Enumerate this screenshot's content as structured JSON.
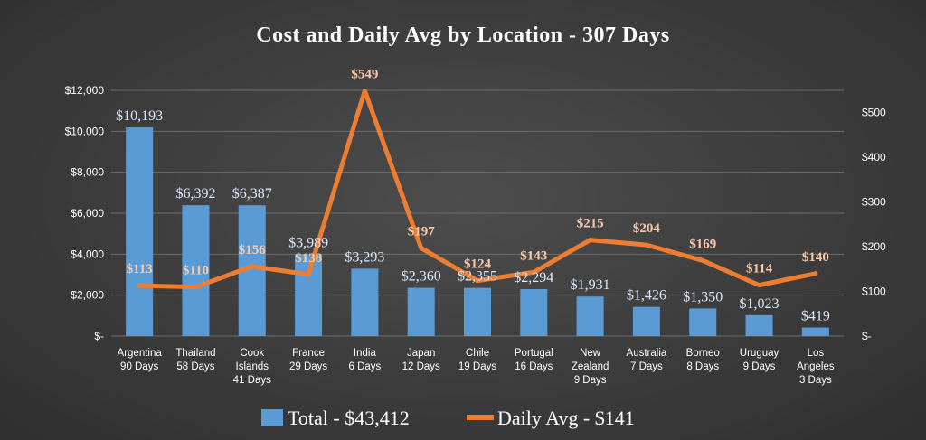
{
  "chart_data": {
    "type": "bar",
    "title": "Cost and Daily Avg by Location - 307 Days",
    "categories": [
      [
        "Argentina",
        "90 Days"
      ],
      [
        "Thailand",
        "58 Days"
      ],
      [
        "Cook",
        "Islands",
        "41 Days"
      ],
      [
        "France",
        "29 Days"
      ],
      [
        "India",
        "6 Days"
      ],
      [
        "Japan",
        "12 Days"
      ],
      [
        "Chile",
        "19 Days"
      ],
      [
        "Portugal",
        "16 Days"
      ],
      [
        "New",
        "Zealand",
        "9 Days"
      ],
      [
        "Australia",
        "7 Days"
      ],
      [
        "Borneo",
        "8 Days"
      ],
      [
        "Uruguay",
        "9 Days"
      ],
      [
        "Los",
        "Angeles",
        "3 Days"
      ]
    ],
    "series": [
      {
        "name": "Total - $43,412",
        "type": "bar",
        "axis": "left",
        "color": "#5b9bd5",
        "values": [
          10193,
          6392,
          6387,
          3989,
          3293,
          2360,
          2355,
          2294,
          1931,
          1426,
          1350,
          1023,
          419
        ],
        "labels": [
          "$10,193",
          "$6,392",
          "$6,387",
          "$3,989",
          "$3,293",
          "$2,360",
          "$2,355",
          "$2,294",
          "$1,931",
          "$1,426",
          "$1,350",
          "$1,023",
          "$419"
        ]
      },
      {
        "name": "Daily Avg - $141",
        "type": "line",
        "axis": "right",
        "color": "#ed7d31",
        "values": [
          113,
          110,
          156,
          138,
          549,
          197,
          124,
          143,
          215,
          204,
          169,
          114,
          140
        ],
        "labels": [
          "$113",
          "$110",
          "$156",
          "$138",
          "$549",
          "$197",
          "$124",
          "$143",
          "$215",
          "$204",
          "$169",
          "$114",
          "$140"
        ]
      }
    ],
    "y_left": {
      "range": [
        0,
        12000
      ],
      "ticks": [
        0,
        2000,
        4000,
        6000,
        8000,
        10000,
        12000
      ],
      "tick_labels": [
        "$-",
        "$2,000",
        "$4,000",
        "$6,000",
        "$8,000",
        "$10,000",
        "$12,000"
      ]
    },
    "y_right": {
      "range": [
        0,
        550
      ],
      "ticks": [
        0,
        100,
        200,
        300,
        400,
        500
      ],
      "tick_labels": [
        "$-",
        "$100",
        "$200",
        "$300",
        "$400",
        "$500"
      ]
    },
    "grid": true,
    "legend_position": "bottom"
  }
}
